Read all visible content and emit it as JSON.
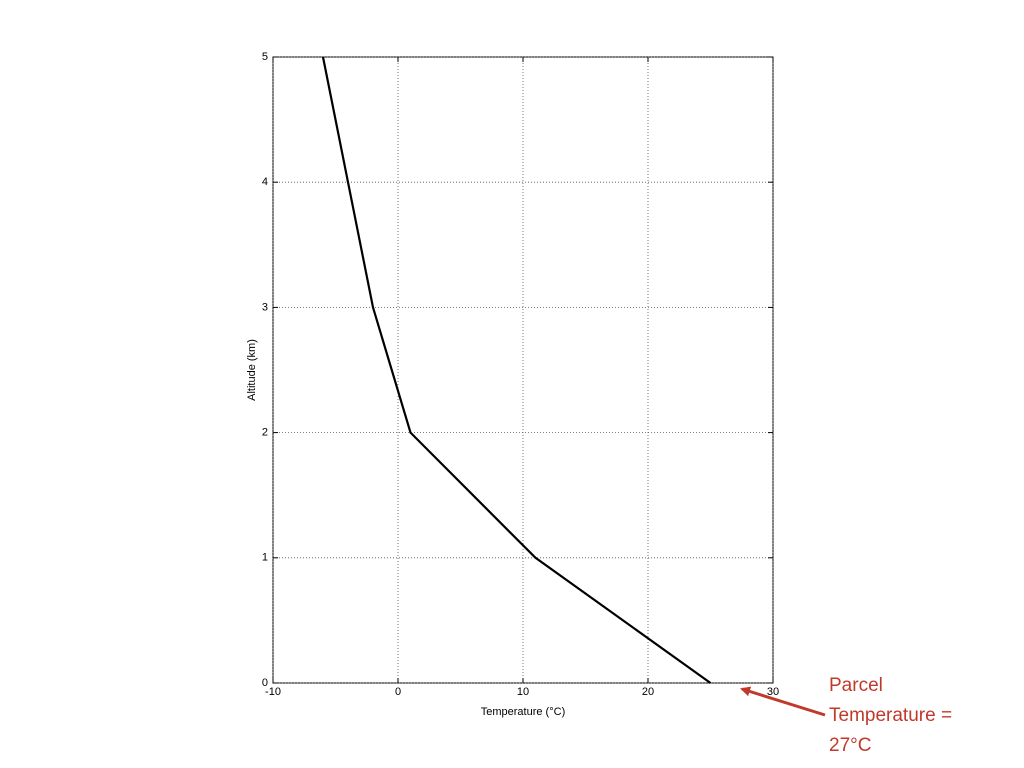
{
  "chart_data": {
    "type": "line",
    "x_label": "Temperature (°C)",
    "y_label": "Altitude (km)",
    "x": [
      25,
      11,
      1,
      -2,
      -4,
      -6
    ],
    "series": [
      {
        "color": "#000000",
        "values": [
          0,
          1,
          2,
          3,
          4,
          5
        ]
      }
    ],
    "xlim": [
      -10,
      30
    ],
    "ylim": [
      0,
      5
    ],
    "xticks": [
      -10,
      0,
      10,
      20,
      30
    ],
    "yticks": [
      0,
      1,
      2,
      3,
      4,
      5
    ],
    "grid": true,
    "annotation": {
      "lines": [
        "Parcel",
        "Temperature =",
        "27°C"
      ],
      "color": "#c0392b"
    }
  }
}
